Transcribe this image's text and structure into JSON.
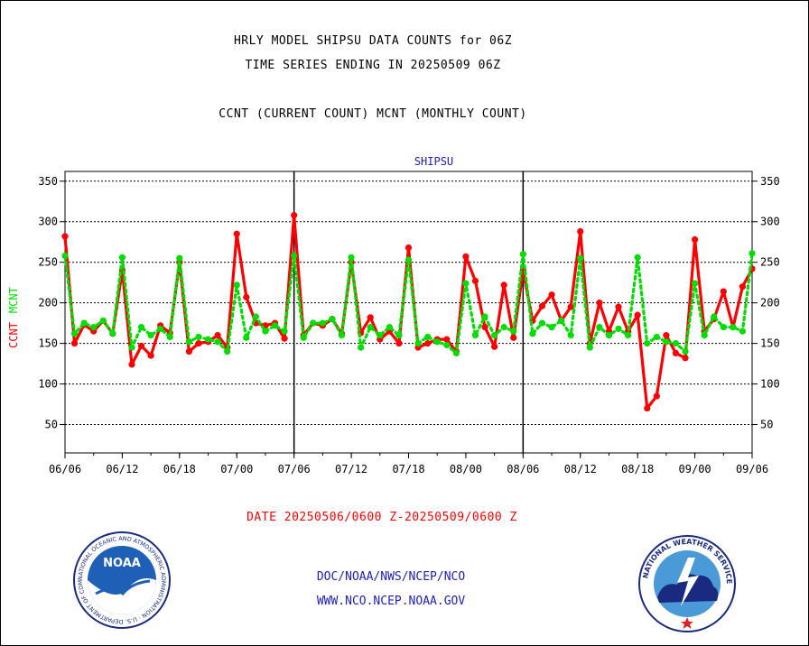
{
  "header": {
    "title_line1": "HRLY MODEL SHIPSU DATA COUNTS for 06Z",
    "title_line2": "TIME SERIES ENDING IN 20250509 06Z",
    "subtitle": "CCNT (CURRENT COUNT) MCNT (MONTHLY COUNT)"
  },
  "footer": {
    "date_range": "DATE 20250506/0600 Z-20250509/0600 Z",
    "credit_line1": "DOC/NOAA/NWS/NCEP/NCO",
    "credit_line2": "WWW.NCO.NCEP.NOAA.GOV"
  },
  "logos": {
    "noaa_text": "NOAA",
    "noaa_ring_text": "NATIONAL OCEANIC AND ATMOSPHERIC ADMINISTRATION · U.S. DEPARTMENT OF COMMERCE",
    "nws_ring_text": "NATIONAL WEATHER SERVICE"
  },
  "chart_data": {
    "type": "line",
    "title": "SHIPSU",
    "ylabel_left_series1": "CCNT",
    "ylabel_left_series2": "MCNT",
    "ylim": [
      15,
      362
    ],
    "yticks": [
      50,
      100,
      150,
      200,
      250,
      300,
      350
    ],
    "xlim": [
      0,
      72
    ],
    "xticks": [
      0,
      6,
      12,
      18,
      24,
      30,
      36,
      42,
      48,
      54,
      60,
      66,
      72
    ],
    "xtick_labels": [
      "06/06",
      "06/12",
      "06/18",
      "07/00",
      "07/06",
      "07/12",
      "07/18",
      "08/00",
      "08/06",
      "08/12",
      "08/18",
      "09/00",
      "09/06"
    ],
    "day_boundaries": [
      24,
      48
    ],
    "grid": "horizontal",
    "colors": {
      "CCNT": "#ff0000",
      "MCNT": "#00dd00"
    },
    "series": [
      {
        "name": "CCNT",
        "values": [
          282,
          150,
          173,
          165,
          178,
          162,
          240,
          124,
          147,
          135,
          172,
          163,
          250,
          140,
          150,
          152,
          160,
          145,
          285,
          207,
          175,
          172,
          175,
          156,
          308,
          160,
          175,
          172,
          180,
          162,
          250,
          163,
          182,
          155,
          165,
          150,
          268,
          145,
          150,
          155,
          155,
          140,
          257,
          227,
          170,
          146,
          222,
          157,
          240,
          178,
          196,
          210,
          178,
          195,
          288,
          150,
          200,
          165,
          195,
          165,
          185,
          70,
          85,
          160,
          138,
          132,
          278,
          165,
          180,
          214,
          170,
          220,
          242
        ]
      },
      {
        "name": "MCNT",
        "values": [
          258,
          162,
          175,
          170,
          178,
          162,
          256,
          145,
          170,
          160,
          168,
          158,
          255,
          152,
          158,
          155,
          152,
          140,
          222,
          157,
          183,
          165,
          172,
          165,
          258,
          157,
          175,
          175,
          180,
          160,
          256,
          145,
          170,
          160,
          170,
          160,
          253,
          150,
          158,
          152,
          148,
          138,
          224,
          160,
          183,
          160,
          170,
          165,
          260,
          162,
          175,
          170,
          178,
          160,
          255,
          145,
          170,
          160,
          168,
          160,
          256,
          150,
          158,
          152,
          150,
          140,
          224,
          160,
          183,
          170,
          170,
          165,
          261
        ]
      }
    ]
  }
}
